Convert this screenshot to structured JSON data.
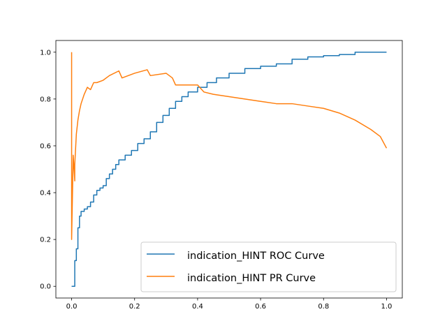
{
  "chart_data": {
    "type": "line",
    "title": "",
    "xlabel": "",
    "ylabel": "",
    "xlim": [
      -0.05,
      1.05
    ],
    "ylim": [
      -0.05,
      1.05
    ],
    "xticks": [
      "0.0",
      "0.2",
      "0.4",
      "0.6",
      "0.8",
      "1.0"
    ],
    "yticks": [
      "0.0",
      "0.2",
      "0.4",
      "0.6",
      "0.8",
      "1.0"
    ],
    "grid": false,
    "legend_position": "lower-right",
    "series": [
      {
        "name": "indication_HINT ROC Curve",
        "color": "#1f77b4",
        "x": [
          0.0,
          0.01,
          0.01,
          0.015,
          0.02,
          0.025,
          0.03,
          0.04,
          0.05,
          0.06,
          0.07,
          0.08,
          0.09,
          0.1,
          0.11,
          0.12,
          0.13,
          0.14,
          0.15,
          0.17,
          0.19,
          0.21,
          0.23,
          0.25,
          0.27,
          0.29,
          0.31,
          0.33,
          0.35,
          0.37,
          0.4,
          0.43,
          0.46,
          0.5,
          0.55,
          0.6,
          0.65,
          0.7,
          0.75,
          0.8,
          0.85,
          0.9,
          1.0
        ],
        "y": [
          0.0,
          0.01,
          0.11,
          0.16,
          0.25,
          0.3,
          0.32,
          0.33,
          0.34,
          0.36,
          0.39,
          0.41,
          0.42,
          0.43,
          0.46,
          0.48,
          0.5,
          0.52,
          0.54,
          0.56,
          0.58,
          0.61,
          0.63,
          0.66,
          0.7,
          0.73,
          0.76,
          0.79,
          0.81,
          0.83,
          0.85,
          0.87,
          0.89,
          0.91,
          0.93,
          0.94,
          0.95,
          0.97,
          0.98,
          0.985,
          0.99,
          1.0,
          1.0
        ]
      },
      {
        "name": "indication_HINT PR Curve",
        "color": "#ff7f0e",
        "x": [
          0.0,
          0.0,
          0.005,
          0.01,
          0.01,
          0.015,
          0.02,
          0.025,
          0.03,
          0.04,
          0.05,
          0.06,
          0.07,
          0.08,
          0.1,
          0.12,
          0.15,
          0.16,
          0.2,
          0.24,
          0.25,
          0.3,
          0.32,
          0.33,
          0.35,
          0.4,
          0.42,
          0.45,
          0.5,
          0.55,
          0.6,
          0.65,
          0.7,
          0.75,
          0.8,
          0.85,
          0.9,
          0.95,
          0.98,
          1.0
        ],
        "y": [
          1.0,
          0.2,
          0.56,
          0.45,
          0.52,
          0.65,
          0.71,
          0.75,
          0.78,
          0.82,
          0.85,
          0.84,
          0.87,
          0.87,
          0.88,
          0.9,
          0.92,
          0.89,
          0.91,
          0.925,
          0.9,
          0.91,
          0.89,
          0.86,
          0.86,
          0.86,
          0.83,
          0.82,
          0.81,
          0.8,
          0.79,
          0.78,
          0.78,
          0.77,
          0.76,
          0.74,
          0.71,
          0.67,
          0.64,
          0.59
        ]
      }
    ]
  }
}
